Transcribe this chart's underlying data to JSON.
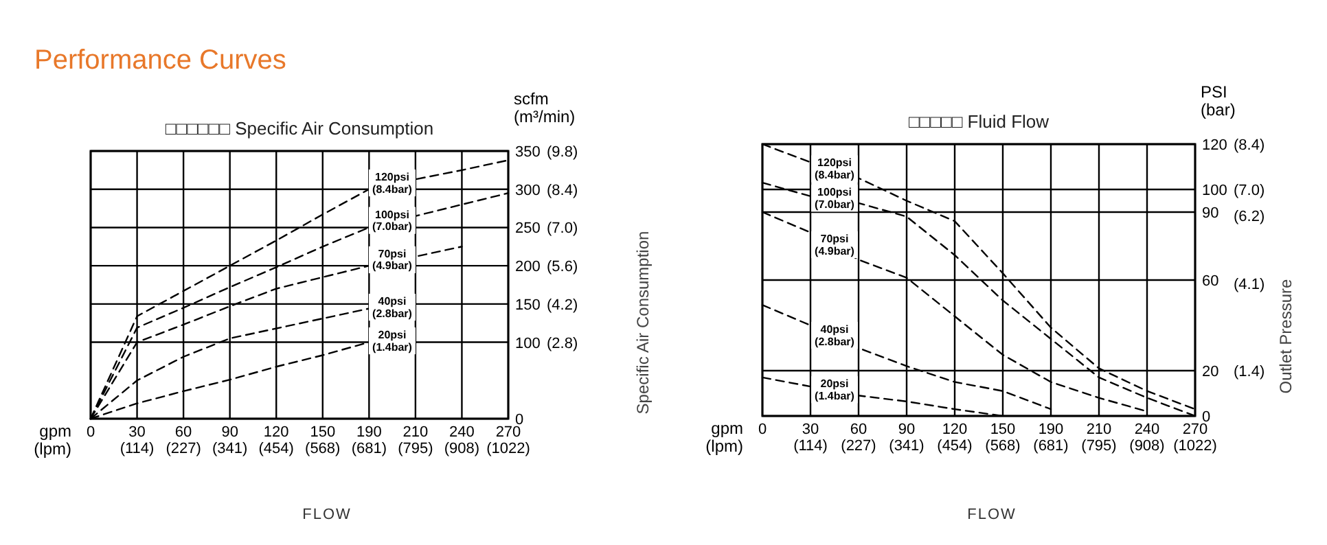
{
  "chart_data": [
    {
      "type": "line",
      "title": "□□□□□□ Specific Air Consumption",
      "xlabel": "gpm (lpm)",
      "ylabel": "scfm (m³/min)",
      "annotations": [
        "Performance Curves",
        "FLOW"
      ],
      "categories": [
        "0",
        "30 (114)",
        "60 (227)",
        "90 (341)",
        "120 (454)",
        "150 (568)",
        "190 (681)",
        "210 (795)",
        "240 (908)",
        "270 (1022)"
      ],
      "ylim": [
        0,
        350
      ],
      "yticks": [
        0,
        100,
        150,
        200,
        250,
        300,
        350
      ],
      "y2lim": [
        0,
        9.8
      ],
      "y2ticks": [
        {
          "value": 2.8,
          "label": "(2.8)"
        },
        {
          "value": 4.2,
          "label": "(4.2)"
        },
        {
          "value": 5.6,
          "label": "(5.6)"
        },
        {
          "value": 7.0,
          "label": "(7.0)"
        },
        {
          "value": 8.4,
          "label": "(8.4)"
        },
        {
          "value": 9.8,
          "label": "(9.8)"
        }
      ],
      "grid": true,
      "line_style": "dashed",
      "series": [
        {
          "name": "120psi (8.4bar)",
          "color": "#000000",
          "values": [
            0,
            134,
            167,
            200,
            233,
            267,
            300,
            313,
            325,
            338
          ]
        },
        {
          "name": "100psi (7.0bar)",
          "color": "#000000",
          "values": [
            0,
            119,
            145,
            172,
            198,
            225,
            250,
            265,
            280,
            295
          ]
        },
        {
          "name": "70psi (4.9bar)",
          "color": "#000000",
          "values": [
            0,
            100,
            123,
            147,
            170,
            185,
            200,
            212,
            225,
            null
          ]
        },
        {
          "name": "40psi (2.8bar)",
          "color": "#000000",
          "values": [
            0,
            50,
            81,
            105,
            118,
            131,
            144,
            null,
            null,
            null
          ]
        },
        {
          "name": "20psi (1.4bar)",
          "color": "#000000",
          "values": [
            0,
            20,
            36,
            51,
            68,
            83,
            100,
            null,
            null,
            null
          ]
        }
      ]
    },
    {
      "type": "line",
      "title": "□□□□□ Fluid Flow",
      "xlabel": "gpm (lpm)",
      "ylabel": "PSI (bar)",
      "annotations": [
        "FLOW",
        "Specific Air Consumption",
        "Outlet Pressure"
      ],
      "categories": [
        "0",
        "30 (114)",
        "60 (227)",
        "90 (341)",
        "120 (454)",
        "150 (568)",
        "190 (681)",
        "210 (795)",
        "240 (908)",
        "270 (1022)"
      ],
      "ylim": [
        0,
        120
      ],
      "yticks": [
        0,
        20,
        60,
        90,
        100,
        120
      ],
      "y2lim": [
        0,
        8.4
      ],
      "y2ticks": [
        {
          "value": 1.4,
          "label": "(1.4)"
        },
        {
          "value": 4.1,
          "label": "(4.1)"
        },
        {
          "value": 6.2,
          "label": "(6.2)"
        },
        {
          "value": 7.0,
          "label": "(7.0)"
        },
        {
          "value": 8.4,
          "label": "(8.4)"
        }
      ],
      "grid": true,
      "line_style": "dashed",
      "series": [
        {
          "name": "120psi (8.4bar)",
          "color": "#000000",
          "values": [
            120,
            112,
            105,
            95,
            86,
            63,
            39,
            21,
            11,
            3
          ]
        },
        {
          "name": "100psi (7.0bar)",
          "color": "#000000",
          "values": [
            103,
            97,
            94,
            88,
            71,
            51,
            34,
            17,
            8,
            0
          ]
        },
        {
          "name": "70psi (4.9bar)",
          "color": "#000000",
          "values": [
            90,
            81,
            69,
            61,
            44,
            27,
            15,
            8,
            2,
            null
          ]
        },
        {
          "name": "40psi (2.8bar)",
          "color": "#000000",
          "values": [
            49,
            40,
            30,
            22,
            15,
            11,
            3,
            null,
            null,
            null
          ]
        },
        {
          "name": "20psi (1.4bar)",
          "color": "#000000",
          "values": [
            17,
            13,
            9,
            6.4,
            3,
            0,
            null,
            null,
            null,
            null
          ]
        }
      ]
    }
  ]
}
